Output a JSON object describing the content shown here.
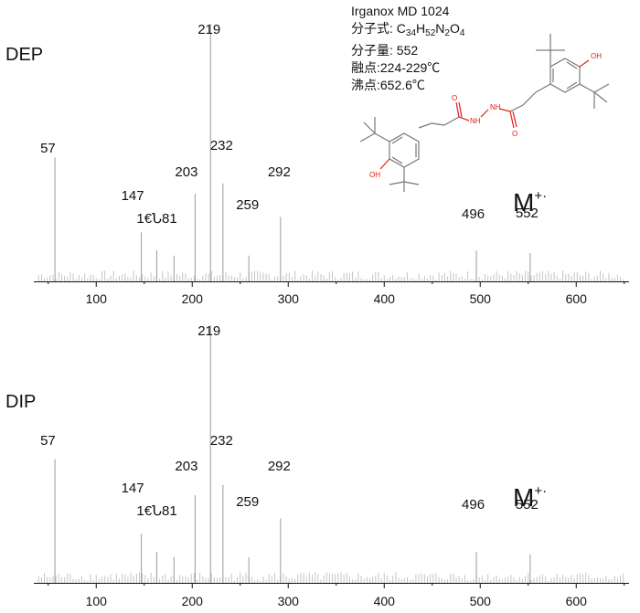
{
  "compound": {
    "name": "Irganox MD 1024",
    "formula_label": "分子式: ",
    "formula_parts": [
      {
        "t": "C"
      },
      {
        "t": "34",
        "sub": true
      },
      {
        "t": "H"
      },
      {
        "t": "52",
        "sub": true
      },
      {
        "t": "N"
      },
      {
        "t": "2",
        "sub": true
      },
      {
        "t": "O"
      },
      {
        "t": "4",
        "sub": true
      }
    ],
    "mw": "分子量: 552",
    "mp": "融点:224-229℃",
    "bp": "沸点:652.6℃"
  },
  "structure": {
    "labels": {
      "oh": "OH",
      "nh": "NH",
      "o": "O"
    }
  },
  "chart_data": [
    {
      "type": "bar",
      "title": "DEP",
      "molecular_ion_label": "M",
      "molecular_ion_charge": "+·",
      "xlim": [
        35,
        655
      ],
      "xticks": [
        100,
        200,
        300,
        400,
        500,
        600
      ],
      "ylim": [
        0,
        100
      ],
      "x": [
        57,
        147,
        163,
        181,
        203,
        219,
        232,
        259,
        292,
        496,
        552
      ],
      "values": [
        48,
        19,
        12,
        10,
        34,
        100,
        38,
        10,
        25,
        12,
        11
      ],
      "peak_labels": [
        {
          "mz": 57,
          "text": "57"
        },
        {
          "mz": 147,
          "text": "147"
        },
        {
          "mz": 163,
          "text": "1€Ն81"
        },
        {
          "mz": 203,
          "text": "203"
        },
        {
          "mz": 219,
          "text": "219"
        },
        {
          "mz": 232,
          "text": "232"
        },
        {
          "mz": 259,
          "text": "259"
        },
        {
          "mz": 292,
          "text": "292"
        },
        {
          "mz": 496,
          "text": "496"
        },
        {
          "mz": 552,
          "text": "552"
        }
      ]
    },
    {
      "type": "bar",
      "title": "DIP",
      "molecular_ion_label": "M",
      "molecular_ion_charge": "+·",
      "xlim": [
        35,
        655
      ],
      "xticks": [
        100,
        200,
        300,
        400,
        500,
        600
      ],
      "ylim": [
        0,
        100
      ],
      "x": [
        57,
        147,
        163,
        181,
        203,
        219,
        232,
        259,
        292,
        496,
        552
      ],
      "values": [
        48,
        19,
        12,
        10,
        34,
        100,
        38,
        10,
        25,
        12,
        11
      ],
      "peak_labels": [
        {
          "mz": 57,
          "text": "57"
        },
        {
          "mz": 147,
          "text": "147"
        },
        {
          "mz": 163,
          "text": "1€Ն81"
        },
        {
          "mz": 203,
          "text": "203"
        },
        {
          "mz": 219,
          "text": "219"
        },
        {
          "mz": 232,
          "text": "232"
        },
        {
          "mz": 259,
          "text": "259"
        },
        {
          "mz": 292,
          "text": "292"
        },
        {
          "mz": 496,
          "text": "496"
        },
        {
          "mz": 552,
          "text": "552"
        }
      ]
    }
  ]
}
